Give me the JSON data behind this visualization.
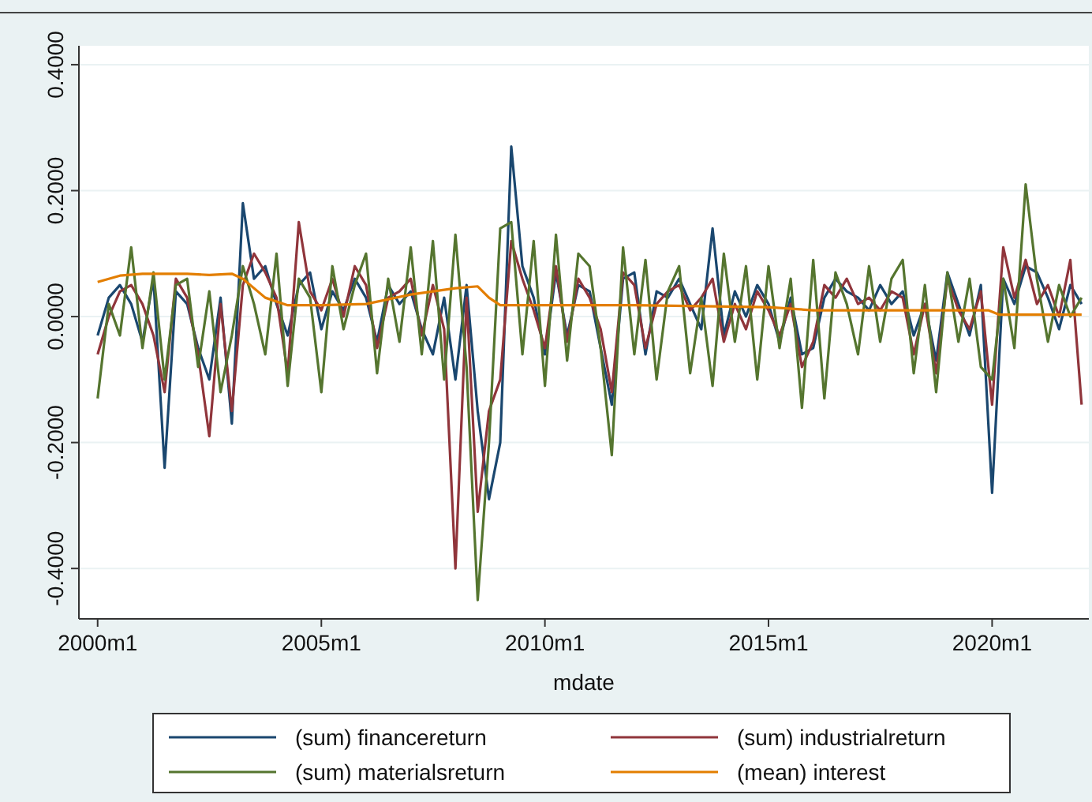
{
  "chart_data": {
    "type": "line",
    "xlabel": "mdate",
    "grid": "y",
    "legend": "bottom",
    "xlim": [
      "1999-08",
      "2022-03"
    ],
    "ylim": [
      -0.48,
      0.43
    ],
    "xticks": [
      {
        "value": "2000-01",
        "label": "2000m1"
      },
      {
        "value": "2005-01",
        "label": "2005m1"
      },
      {
        "value": "2010-01",
        "label": "2010m1"
      },
      {
        "value": "2015-01",
        "label": "2015m1"
      },
      {
        "value": "2020-01",
        "label": "2020m1"
      }
    ],
    "yticks": [
      {
        "value": -0.4,
        "label": "-0.4000"
      },
      {
        "value": -0.2,
        "label": "-0.2000"
      },
      {
        "value": 0,
        "label": "0.0000"
      },
      {
        "value": 0.2,
        "label": "0.2000"
      },
      {
        "value": 0.4,
        "label": "0.4000"
      }
    ],
    "x": [
      "2000-01",
      "2000-04",
      "2000-07",
      "2000-10",
      "2001-01",
      "2001-04",
      "2001-07",
      "2001-10",
      "2002-01",
      "2002-04",
      "2002-07",
      "2002-10",
      "2003-01",
      "2003-04",
      "2003-07",
      "2003-10",
      "2004-01",
      "2004-04",
      "2004-07",
      "2004-10",
      "2005-01",
      "2005-04",
      "2005-07",
      "2005-10",
      "2006-01",
      "2006-04",
      "2006-07",
      "2006-10",
      "2007-01",
      "2007-04",
      "2007-07",
      "2007-10",
      "2008-01",
      "2008-04",
      "2008-07",
      "2008-10",
      "2009-01",
      "2009-04",
      "2009-07",
      "2009-10",
      "2010-01",
      "2010-04",
      "2010-07",
      "2010-10",
      "2011-01",
      "2011-04",
      "2011-07",
      "2011-10",
      "2012-01",
      "2012-04",
      "2012-07",
      "2012-10",
      "2013-01",
      "2013-04",
      "2013-07",
      "2013-10",
      "2014-01",
      "2014-04",
      "2014-07",
      "2014-10",
      "2015-01",
      "2015-04",
      "2015-07",
      "2015-10",
      "2016-01",
      "2016-04",
      "2016-07",
      "2016-10",
      "2017-01",
      "2017-04",
      "2017-07",
      "2017-10",
      "2018-01",
      "2018-04",
      "2018-07",
      "2018-10",
      "2019-01",
      "2019-04",
      "2019-07",
      "2019-10",
      "2020-01",
      "2020-04",
      "2020-07",
      "2020-10",
      "2021-01",
      "2021-04",
      "2021-07",
      "2021-10",
      "2022-01"
    ],
    "series": [
      {
        "name": "(sum) financereturn",
        "color": "#1a476f",
        "values": [
          -0.03,
          0.03,
          0.05,
          0.02,
          -0.04,
          0.06,
          -0.24,
          0.04,
          0.02,
          -0.05,
          -0.1,
          0.03,
          -0.17,
          0.18,
          0.06,
          0.08,
          0.02,
          -0.03,
          0.05,
          0.07,
          -0.02,
          0.04,
          0.01,
          0.06,
          0.03,
          -0.04,
          0.05,
          0.02,
          0.04,
          -0.02,
          -0.06,
          0.03,
          -0.1,
          0.05,
          -0.15,
          -0.29,
          -0.2,
          0.27,
          0.08,
          0.03,
          -0.06,
          0.07,
          -0.03,
          0.05,
          0.04,
          -0.05,
          -0.14,
          0.06,
          0.07,
          -0.06,
          0.04,
          0.03,
          0.06,
          0.02,
          -0.02,
          0.14,
          -0.03,
          0.04,
          0.0,
          0.05,
          0.02,
          -0.04,
          0.03,
          -0.06,
          -0.05,
          0.03,
          0.06,
          0.04,
          0.03,
          0.01,
          0.05,
          0.02,
          0.04,
          -0.03,
          0.02,
          -0.07,
          0.07,
          0.02,
          -0.03,
          0.05,
          -0.28,
          0.06,
          0.02,
          0.08,
          0.07,
          0.03,
          -0.02,
          0.05,
          0.02
        ]
      },
      {
        "name": "(sum) industrialreturn",
        "color": "#90353b",
        "values": [
          -0.06,
          0.0,
          0.04,
          0.05,
          0.02,
          -0.03,
          -0.12,
          0.06,
          0.03,
          -0.06,
          -0.19,
          0.02,
          -0.15,
          0.05,
          0.1,
          0.07,
          0.03,
          -0.09,
          0.15,
          0.04,
          0.01,
          0.06,
          0.0,
          0.08,
          0.05,
          -0.05,
          0.03,
          0.04,
          0.06,
          -0.03,
          0.05,
          -0.02,
          -0.4,
          0.03,
          -0.31,
          -0.15,
          -0.1,
          0.12,
          0.06,
          0.01,
          -0.05,
          0.08,
          -0.04,
          0.06,
          0.03,
          -0.02,
          -0.12,
          0.07,
          0.05,
          -0.05,
          0.02,
          0.04,
          0.05,
          0.01,
          0.03,
          0.06,
          -0.04,
          0.02,
          -0.02,
          0.04,
          0.01,
          -0.03,
          0.02,
          -0.08,
          -0.04,
          0.05,
          0.03,
          0.06,
          0.02,
          0.03,
          0.01,
          0.04,
          0.03,
          -0.06,
          0.02,
          -0.09,
          0.06,
          0.01,
          -0.02,
          0.04,
          -0.14,
          0.11,
          0.03,
          0.09,
          0.02,
          0.05,
          0.0,
          0.09,
          -0.14
        ]
      },
      {
        "name": "(sum) materialsreturn",
        "color": "#55752f",
        "values": [
          -0.13,
          0.02,
          -0.03,
          0.11,
          -0.05,
          0.07,
          -0.1,
          0.05,
          0.06,
          -0.08,
          0.04,
          -0.12,
          -0.03,
          0.08,
          0.02,
          -0.06,
          0.1,
          -0.11,
          0.06,
          0.03,
          -0.12,
          0.08,
          -0.02,
          0.05,
          0.1,
          -0.09,
          0.06,
          -0.04,
          0.11,
          -0.06,
          0.12,
          -0.1,
          0.13,
          -0.08,
          -0.45,
          -0.2,
          0.14,
          0.15,
          -0.06,
          0.12,
          -0.11,
          0.13,
          -0.07,
          0.1,
          0.08,
          -0.05,
          -0.22,
          0.11,
          -0.06,
          0.09,
          -0.1,
          0.04,
          0.08,
          -0.09,
          0.03,
          -0.11,
          0.1,
          -0.04,
          0.08,
          -0.1,
          0.08,
          -0.05,
          0.06,
          -0.145,
          0.09,
          -0.13,
          0.07,
          0.02,
          -0.06,
          0.08,
          -0.04,
          0.06,
          0.09,
          -0.09,
          0.05,
          -0.12,
          0.07,
          -0.04,
          0.06,
          -0.08,
          -0.1,
          0.06,
          -0.05,
          0.21,
          0.06,
          -0.04,
          0.05,
          0.0,
          0.03
        ]
      },
      {
        "name": "(mean) interest",
        "color": "#e37e00",
        "x": [
          "2000-01",
          "2000-07",
          "2001-01",
          "2002-01",
          "2002-07",
          "2003-01",
          "2003-04",
          "2003-10",
          "2004-04",
          "2005-01",
          "2006-01",
          "2007-01",
          "2008-01",
          "2008-07",
          "2008-10",
          "2009-01",
          "2012-01",
          "2015-01",
          "2016-01",
          "2019-12",
          "2020-03",
          "2022-01"
        ],
        "values": [
          0.055,
          0.065,
          0.068,
          0.068,
          0.066,
          0.068,
          0.06,
          0.03,
          0.018,
          0.018,
          0.02,
          0.035,
          0.045,
          0.048,
          0.03,
          0.018,
          0.018,
          0.015,
          0.01,
          0.01,
          0.003,
          0.003
        ]
      }
    ]
  }
}
